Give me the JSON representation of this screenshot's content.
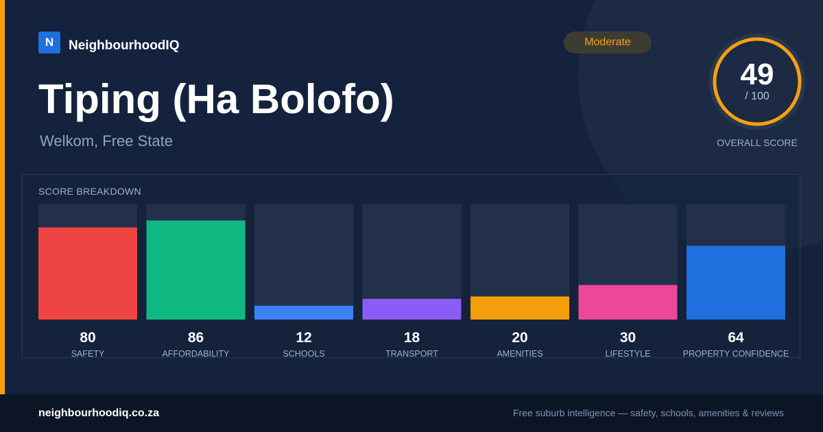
{
  "brand": {
    "logo_letter": "N",
    "name": "NeighbourhoodIQ"
  },
  "suburb": {
    "name": "Tiping (Ha Bolofo)",
    "location": "Welkom, Free State"
  },
  "rating_badge": "Moderate",
  "overall": {
    "score": "49",
    "max": "/ 100",
    "label": "OVERALL SCORE",
    "fraction": 0.49
  },
  "breakdown_title": "SCORE BREAKDOWN",
  "chart_data": {
    "type": "bar",
    "categories": [
      "SAFETY",
      "AFFORDABILITY",
      "SCHOOLS",
      "TRANSPORT",
      "AMENITIES",
      "LIFESTYLE",
      "PROPERTY CONFIDENCE"
    ],
    "values": [
      80,
      86,
      12,
      18,
      20,
      30,
      64
    ],
    "colors": [
      "#ef4444",
      "#10b981",
      "#3b82f6",
      "#8b5cf6",
      "#f59e0b",
      "#ec4899",
      "#1f6fde"
    ],
    "ylim": [
      0,
      100
    ],
    "title": "SCORE BREAKDOWN"
  },
  "colors": {
    "accent": "#f5a10f",
    "background": "#14223d",
    "track": "#22304a"
  },
  "footer": {
    "domain": "neighbourhoodiq.co.za",
    "tagline": "Free suburb intelligence — safety, schools, amenities & reviews"
  }
}
